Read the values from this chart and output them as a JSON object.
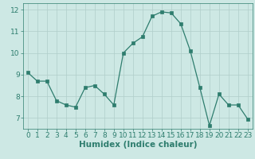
{
  "x": [
    0,
    1,
    2,
    3,
    4,
    5,
    6,
    7,
    8,
    9,
    10,
    11,
    12,
    13,
    14,
    15,
    16,
    17,
    18,
    19,
    20,
    21,
    22,
    23
  ],
  "y": [
    9.1,
    8.7,
    8.7,
    7.8,
    7.6,
    7.5,
    8.4,
    8.5,
    8.1,
    7.6,
    10.0,
    10.45,
    10.75,
    11.7,
    11.9,
    11.85,
    11.35,
    10.1,
    8.4,
    6.65,
    8.1,
    7.6,
    7.6,
    6.95
  ],
  "line_color": "#2e7d6e",
  "marker_color": "#2e7d6e",
  "bg_color": "#cde8e4",
  "grid_color": "#b0ceca",
  "xlabel": "Humidex (Indice chaleur)",
  "xlim": [
    -0.5,
    23.5
  ],
  "ylim": [
    6.5,
    12.3
  ],
  "yticks": [
    7,
    8,
    9,
    10,
    11,
    12
  ],
  "xticks": [
    0,
    1,
    2,
    3,
    4,
    5,
    6,
    7,
    8,
    9,
    10,
    11,
    12,
    13,
    14,
    15,
    16,
    17,
    18,
    19,
    20,
    21,
    22,
    23
  ],
  "tick_font_size": 6.5,
  "xlabel_font_size": 7.5
}
